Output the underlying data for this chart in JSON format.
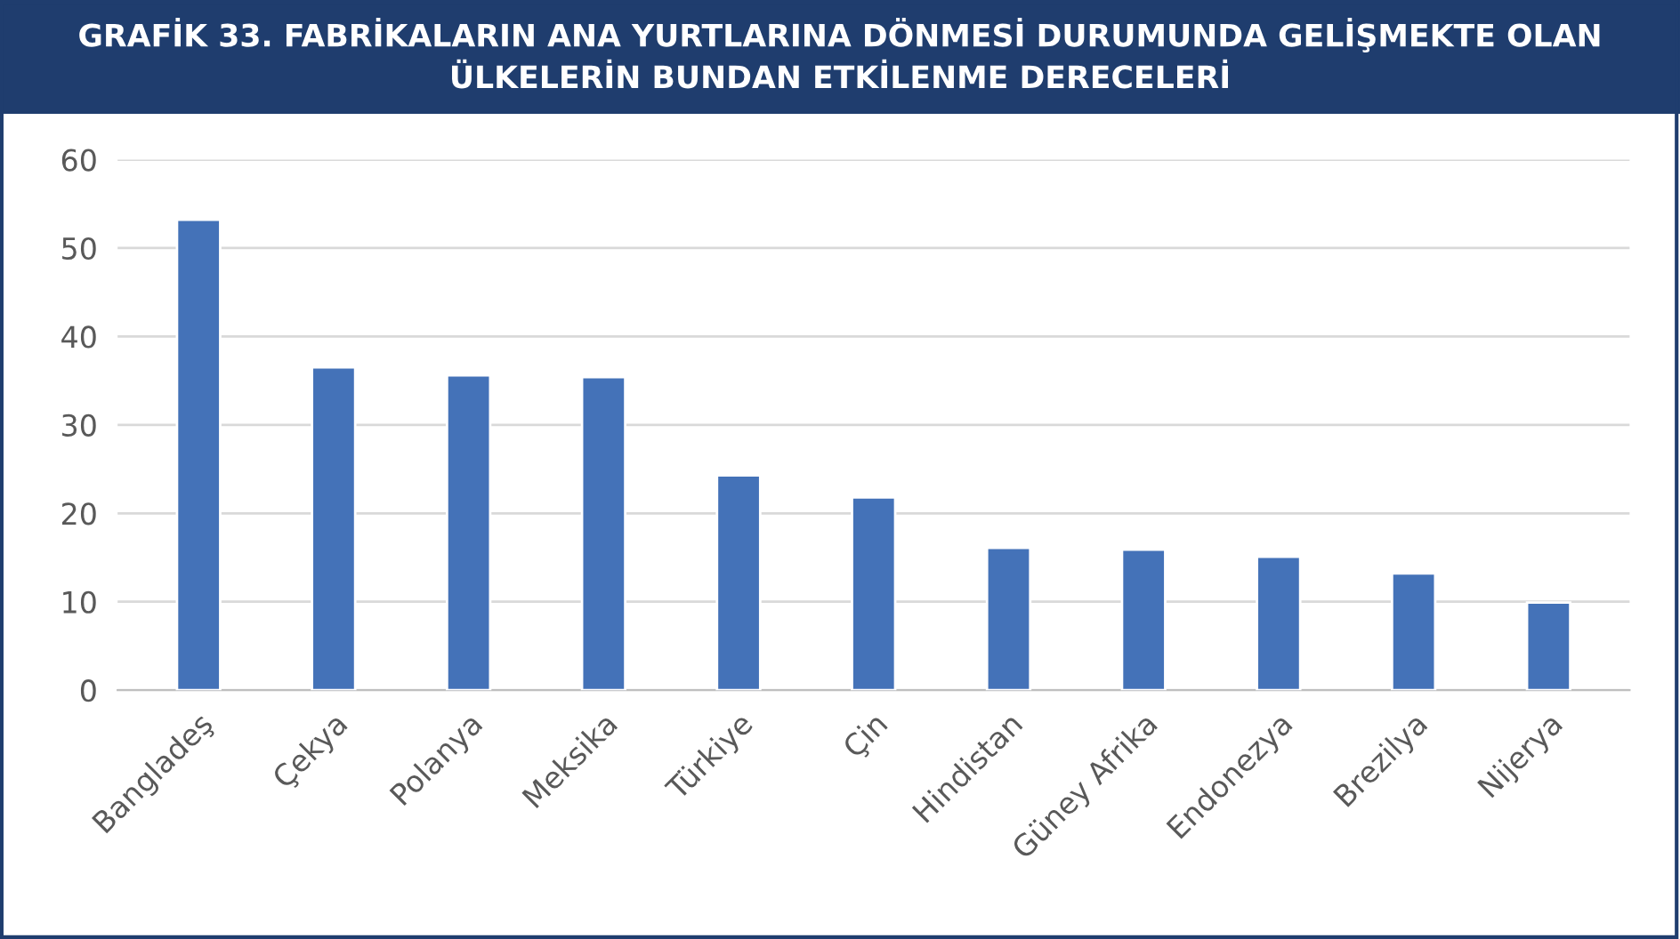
{
  "chart_data": {
    "type": "bar",
    "title": "GRAFİK 33. FABRİKALARIN ANA YURTLARINA DÖNMESİ DURUMUNDA GELİŞMEKTE OLAN\nÜLKELERİN BUNDAN ETKİLENME DERECELERİ",
    "categories": [
      "Bangladeş",
      "Çekya",
      "Polanya",
      "Meksika",
      "Türkiye",
      "Çin",
      "Hindistan",
      "Güney Afrika",
      "Endonezya",
      "Brezilya",
      "Nijerya"
    ],
    "values": [
      53.2,
      36.5,
      35.6,
      35.4,
      24.3,
      21.8,
      16.1,
      15.9,
      15.1,
      13.2,
      9.9
    ],
    "color": "#4472b8",
    "ylim": [
      0,
      60
    ],
    "yticks": [
      0,
      10,
      20,
      30,
      40,
      50,
      60
    ],
    "grid": "y"
  }
}
